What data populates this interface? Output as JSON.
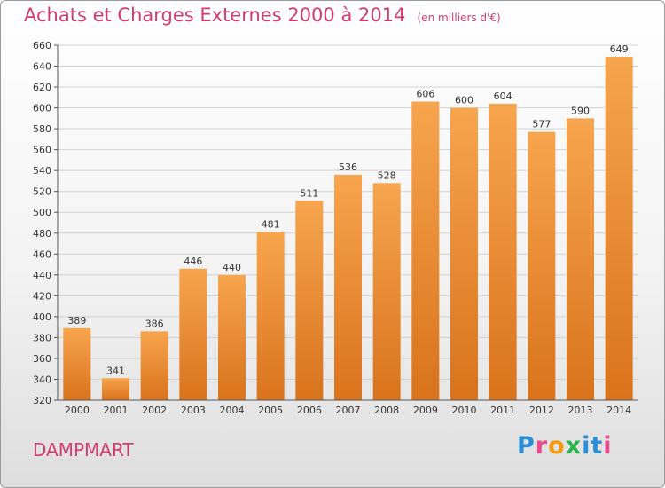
{
  "header": {
    "title": "Achats et Charges Externes 2000 à 2014",
    "unit": "(en milliers d'€)"
  },
  "footer": {
    "place": "DAMPMART",
    "logo_letters": [
      "P",
      "r",
      "o",
      "x",
      "i",
      "t",
      "i"
    ]
  },
  "colors": {
    "title": "#d23c6e",
    "bar_top": "#f7a54e",
    "bar_bottom": "#d9731c",
    "logo": [
      "#2a8fd8",
      "#e84c8a",
      "#f39c12",
      "#2ab44a",
      "#2a8fd8",
      "#2a8fd8",
      "#e84c8a"
    ]
  },
  "chart_data": {
    "type": "bar",
    "title": "Achats et Charges Externes 2000 à 2014",
    "subtitle": "(en milliers d'€)",
    "xlabel": "",
    "ylabel": "",
    "categories": [
      "2000",
      "2001",
      "2002",
      "2003",
      "2004",
      "2005",
      "2006",
      "2007",
      "2008",
      "2009",
      "2010",
      "2011",
      "2012",
      "2013",
      "2014"
    ],
    "values": [
      389,
      341,
      386,
      446,
      440,
      481,
      511,
      536,
      528,
      606,
      600,
      604,
      577,
      590,
      649
    ],
    "ylim": [
      320,
      660
    ],
    "yticks": [
      320,
      340,
      360,
      380,
      400,
      420,
      440,
      460,
      480,
      500,
      520,
      540,
      560,
      580,
      600,
      620,
      640,
      660
    ],
    "grid": true,
    "legend": "none"
  }
}
